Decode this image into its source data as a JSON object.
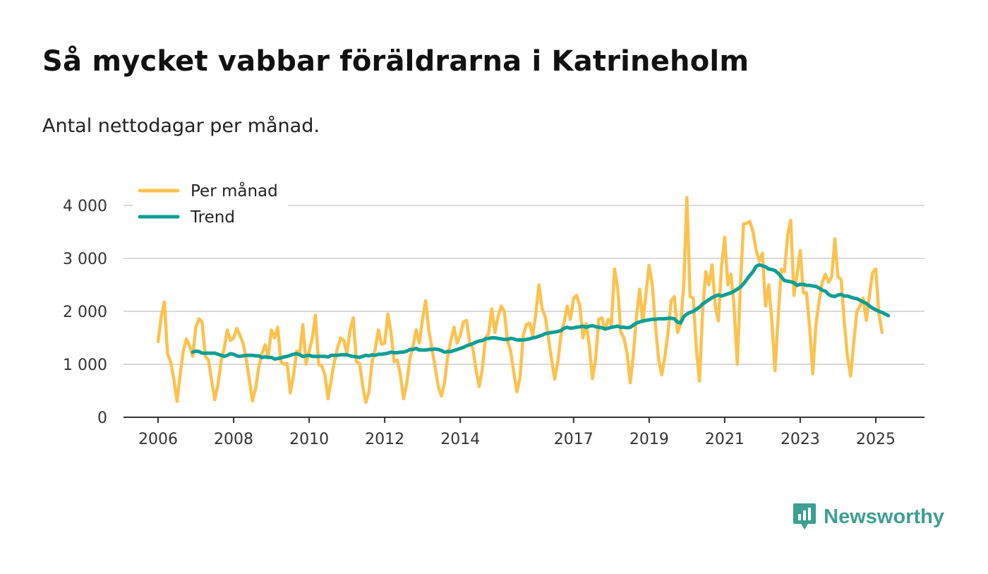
{
  "chart_data": {
    "type": "line",
    "title": "Så mycket vabbar föräldrarna i Katrineholm",
    "subtitle": "Antal nettodagar per månad.",
    "xlabel": "",
    "ylabel": "",
    "xlim": [
      2006.0,
      2026.3
    ],
    "ylim": [
      0,
      4300
    ],
    "x_ticks": [
      2006,
      2008,
      2010,
      2012,
      2014,
      2017,
      2019,
      2021,
      2023,
      2025
    ],
    "x_tick_labels": [
      "2006",
      "2008",
      "2010",
      "2012",
      "2014",
      "2017",
      "2019",
      "2021",
      "2023",
      "2025"
    ],
    "y_ticks": [
      0,
      1000,
      2000,
      3000,
      4000
    ],
    "y_tick_labels": [
      "0",
      "1 000",
      "2 000",
      "3 000",
      "4 000"
    ],
    "grid": true,
    "legend_position": "top-left",
    "start": 2006.0,
    "step": 0.08333,
    "series": [
      {
        "name": "Per månad",
        "color": "#fcc24f",
        "values": [
          1430,
          1900,
          2180,
          1200,
          1050,
          720,
          300,
          800,
          1250,
          1480,
          1350,
          1150,
          1700,
          1860,
          1800,
          1150,
          1080,
          700,
          330,
          600,
          1050,
          1300,
          1650,
          1450,
          1500,
          1680,
          1550,
          1400,
          1100,
          700,
          310,
          550,
          950,
          1200,
          1370,
          1150,
          1650,
          1500,
          1700,
          1050,
          1000,
          1020,
          460,
          780,
          1250,
          1200,
          1750,
          1000,
          1250,
          1500,
          1930,
          1000,
          970,
          800,
          350,
          700,
          1050,
          1300,
          1500,
          1450,
          1200,
          1650,
          1880,
          1050,
          1020,
          600,
          280,
          480,
          1050,
          1300,
          1650,
          1380,
          1400,
          1950,
          1600,
          1050,
          1080,
          800,
          350,
          650,
          1100,
          1350,
          1650,
          1400,
          1850,
          2200,
          1650,
          1300,
          950,
          580,
          400,
          650,
          1150,
          1450,
          1700,
          1400,
          1550,
          1800,
          1830,
          1400,
          1300,
          900,
          580,
          900,
          1500,
          1580,
          2050,
          1600,
          1900,
          2100,
          2000,
          1450,
          1250,
          850,
          480,
          750,
          1550,
          1750,
          1780,
          1550,
          1950,
          2500,
          2050,
          1900,
          1500,
          1100,
          720,
          1050,
          1550,
          1800,
          2100,
          1850,
          2250,
          2300,
          2100,
          1500,
          1770,
          1350,
          730,
          1100,
          1850,
          1880,
          1650,
          1850,
          1750,
          2800,
          2450,
          1600,
          1500,
          1200,
          650,
          1200,
          1900,
          2420,
          1800,
          2350,
          2870,
          2500,
          1750,
          1100,
          800,
          1150,
          1600,
          2200,
          2280,
          1600,
          1750,
          2500,
          4150,
          2280,
          2250,
          1300,
          680,
          2000,
          2750,
          2500,
          2880,
          2100,
          1820,
          2850,
          3400,
          2500,
          2700,
          2100,
          1000,
          2500,
          3650,
          3660,
          3700,
          3500,
          3150,
          2950,
          3100,
          2100,
          2500,
          1800,
          880,
          1900,
          2800,
          2750,
          3450,
          3720,
          2300,
          2700,
          3150,
          2350,
          2350,
          1700,
          820,
          1750,
          2200,
          2550,
          2700,
          2550,
          2650,
          3370,
          2650,
          2600,
          1800,
          1150,
          780,
          1400,
          2000,
          2100,
          2250,
          1830,
          2300,
          2730,
          2800,
          1960,
          1600
        ]
      },
      {
        "name": "Trend",
        "color": "#129e94",
        "start": 2006.917,
        "values": [
          1230,
          1250,
          1240,
          1210,
          1210,
          1210,
          1210,
          1210,
          1190,
          1170,
          1150,
          1170,
          1200,
          1190,
          1160,
          1150,
          1160,
          1170,
          1170,
          1170,
          1160,
          1160,
          1130,
          1140,
          1130,
          1130,
          1100,
          1110,
          1120,
          1140,
          1150,
          1170,
          1190,
          1200,
          1180,
          1150,
          1160,
          1170,
          1150,
          1150,
          1150,
          1150,
          1150,
          1140,
          1170,
          1170,
          1170,
          1180,
          1180,
          1180,
          1160,
          1150,
          1140,
          1130,
          1150,
          1170,
          1160,
          1180,
          1170,
          1190,
          1190,
          1200,
          1210,
          1230,
          1220,
          1220,
          1230,
          1230,
          1250,
          1280,
          1280,
          1300,
          1270,
          1270,
          1270,
          1280,
          1280,
          1290,
          1280,
          1260,
          1230,
          1240,
          1240,
          1260,
          1280,
          1300,
          1320,
          1350,
          1370,
          1390,
          1420,
          1440,
          1450,
          1480,
          1490,
          1500,
          1500,
          1490,
          1480,
          1470,
          1470,
          1490,
          1480,
          1460,
          1460,
          1460,
          1470,
          1480,
          1500,
          1510,
          1530,
          1550,
          1580,
          1590,
          1600,
          1610,
          1620,
          1640,
          1680,
          1700,
          1680,
          1690,
          1700,
          1710,
          1720,
          1700,
          1720,
          1730,
          1710,
          1700,
          1690,
          1670,
          1680,
          1700,
          1710,
          1720,
          1700,
          1700,
          1690,
          1700,
          1740,
          1780,
          1800,
          1820,
          1830,
          1840,
          1850,
          1850,
          1860,
          1860,
          1860,
          1870,
          1870,
          1860,
          1800,
          1780,
          1900,
          1950,
          1980,
          2000,
          2040,
          2080,
          2140,
          2180,
          2220,
          2260,
          2290,
          2310,
          2290,
          2310,
          2330,
          2350,
          2380,
          2420,
          2460,
          2520,
          2600,
          2680,
          2750,
          2850,
          2880,
          2860,
          2840,
          2800,
          2790,
          2770,
          2720,
          2650,
          2580,
          2570,
          2560,
          2540,
          2490,
          2510,
          2510,
          2490,
          2490,
          2480,
          2470,
          2440,
          2400,
          2380,
          2320,
          2290,
          2280,
          2310,
          2320,
          2290,
          2290,
          2270,
          2250,
          2240,
          2210,
          2180,
          2150,
          2100,
          2060,
          2030,
          2000,
          1980,
          1950,
          1920
        ]
      }
    ]
  },
  "brand": {
    "name": "Newsworthy",
    "icon": "newsworthy-logo-icon"
  }
}
